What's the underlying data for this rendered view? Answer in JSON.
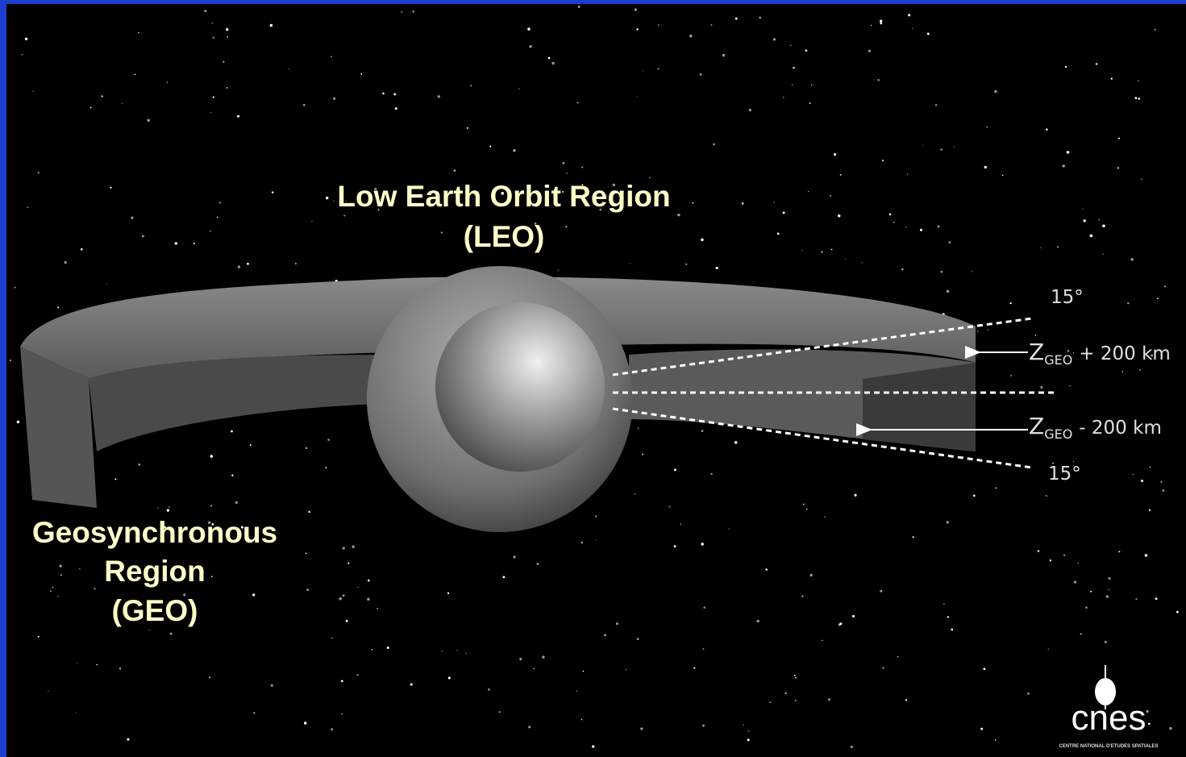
{
  "labels": {
    "leo": [
      "Low Earth Orbit Region",
      "(LEO)"
    ],
    "geo": [
      "Geosynchronous",
      "Region",
      "(GEO)"
    ]
  },
  "annotations": {
    "angle_top": "15°",
    "angle_bottom": "15°",
    "upper_limit": {
      "symbol": "Z",
      "subscript": "GEO",
      "offset": "+ 200 km"
    },
    "lower_limit": {
      "symbol": "Z",
      "subscript": "GEO",
      "offset": "- 200 km"
    }
  },
  "logo": {
    "name": "cnes",
    "tagline": "CENTRE NATIONAL D'ETUDES SPATIALES"
  }
}
